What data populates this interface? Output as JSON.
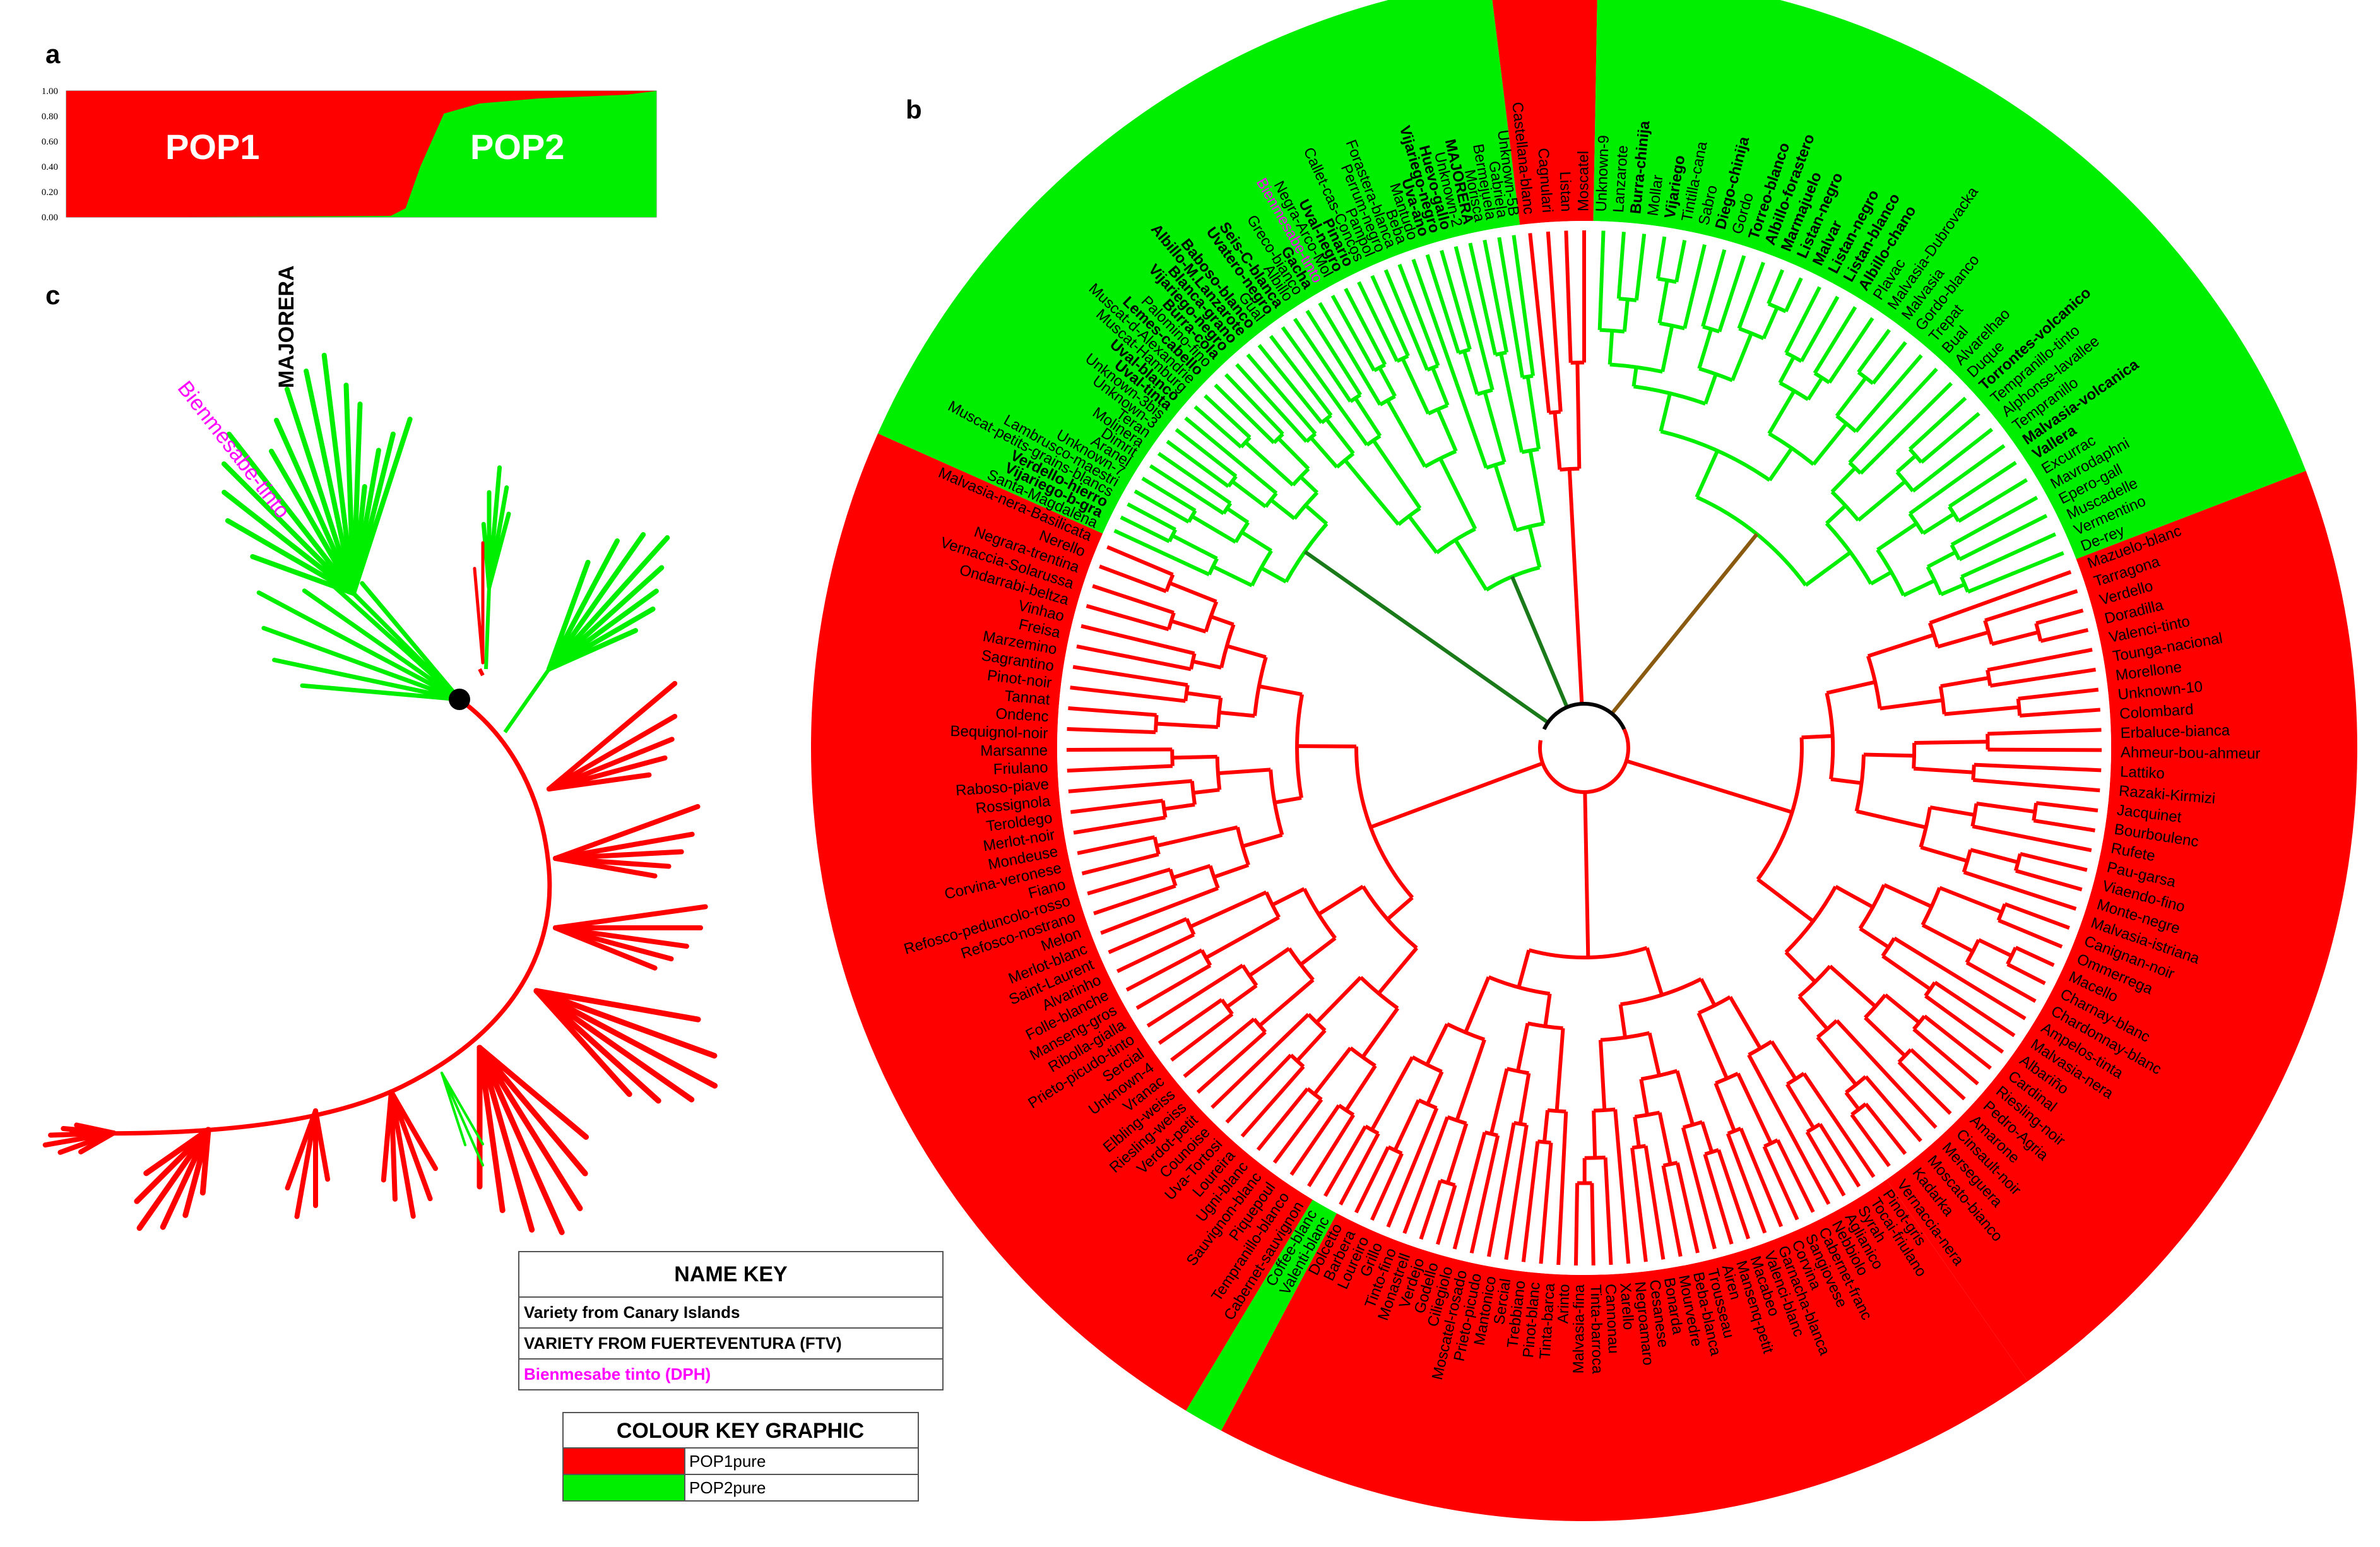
{
  "panels": {
    "a": "a",
    "b": "b",
    "c": "c"
  },
  "colors": {
    "pop1": "#ff0000",
    "pop2": "#00ee00",
    "magenta": "#ff00ff",
    "black": "#000000"
  },
  "panel_a": {
    "pop1_label": "POP1",
    "pop2_label": "POP2",
    "y_ticks": [
      "1.00",
      "0.80",
      "0.60",
      "0.40",
      "0.20",
      "0.00"
    ]
  },
  "chart_data": {
    "type": "area",
    "title": "",
    "xlabel": "",
    "ylabel": "",
    "ylim": [
      0,
      1
    ],
    "x": [
      0,
      0.2,
      0.4,
      0.55,
      0.575,
      0.6,
      0.64,
      0.7,
      0.8,
      0.9,
      0.95,
      1.0
    ],
    "series": [
      {
        "name": "POP1",
        "values": [
          1.0,
          1.0,
          0.995,
          0.99,
          0.93,
          0.6,
          0.18,
          0.1,
          0.06,
          0.04,
          0.03,
          0.0
        ]
      },
      {
        "name": "POP2",
        "values": [
          0.0,
          0.0,
          0.005,
          0.01,
          0.07,
          0.4,
          0.82,
          0.9,
          0.94,
          0.96,
          0.97,
          1.0
        ]
      }
    ]
  },
  "panel_c": {
    "majorera": "MAJORERA",
    "bienmesabe": "Bienmesabe-tinto"
  },
  "name_key": {
    "title": "NAME KEY",
    "rows": [
      {
        "text": "Variety from Canary Islands",
        "color": "#000000"
      },
      {
        "text": "VARIETY FROM FUERTEVENTURA (FTV)",
        "color": "#000000"
      },
      {
        "text": "Bienmesabe tinto (DPH)",
        "color": "#ff00ff"
      }
    ]
  },
  "colour_key": {
    "title": "COLOUR KEY GRAPHIC",
    "rows": [
      {
        "label": "POP1pure",
        "color": "#ff0000"
      },
      {
        "label": "POP2pure",
        "color": "#00ee00"
      }
    ]
  },
  "tree_b": {
    "green_leaves": [
      {
        "t": "Santa-Magdalena"
      },
      {
        "t": "Vijariego-b-gra",
        "b": 1
      },
      {
        "t": "Verdello-hierro",
        "b": 1
      },
      {
        "t": "Muscat-petits-grains-blancs"
      },
      {
        "t": "Lambrusco-maestri"
      },
      {
        "t": "Unknown-7"
      },
      {
        "t": "Aranel"
      },
      {
        "t": "Dimrit"
      },
      {
        "t": "Molinera"
      },
      {
        "t": "Teran"
      },
      {
        "t": "Unknown-3"
      },
      {
        "t": "Unknown-3bis"
      },
      {
        "t": "Uval-tinta",
        "b": 1
      },
      {
        "t": "Uval-blanco",
        "b": 1
      },
      {
        "t": "Muscat-Hamburg"
      },
      {
        "t": "Muscat-d-Alexandrie"
      },
      {
        "t": "Lemes-cabello",
        "b": 1
      },
      {
        "t": "Palomino-fino"
      },
      {
        "t": "Burra-cola",
        "b": 1
      },
      {
        "t": "Vijariego-negro",
        "b": 1
      },
      {
        "t": "Blanca-grano",
        "b": 1
      },
      {
        "t": "Albillo-M.Lanzarote",
        "b": 1
      },
      {
        "t": "Baboso-blanco",
        "b": 1
      },
      {
        "t": "Gual"
      },
      {
        "t": "Uvatero-negro",
        "b": 1
      },
      {
        "t": "Seis-C-blanca",
        "b": 1
      },
      {
        "t": "Albillo"
      },
      {
        "t": "Greco-bianco"
      },
      {
        "t": "Gacha",
        "b": 1
      },
      {
        "t": "Bienmesabe-tinto",
        "m": 1
      },
      {
        "t": "Negra-Arco-Mol"
      },
      {
        "t": "Uval-negro",
        "b": 1
      },
      {
        "t": "Pinario",
        "b": 1
      },
      {
        "t": "Callet-cas-Concos"
      },
      {
        "t": "Pampol"
      },
      {
        "t": "Perrum-negro"
      },
      {
        "t": "Forastera-blanca"
      },
      {
        "t": "Beba"
      },
      {
        "t": "Mantudo"
      },
      {
        "t": "Uva-ano",
        "b": 1
      },
      {
        "t": "Vijariego-negro",
        "b": 1
      },
      {
        "t": "Huevo-gallo",
        "b": 1
      },
      {
        "t": "Unknown-2"
      },
      {
        "t": "MAJORERA",
        "b": 1
      },
      {
        "t": "Morisca"
      },
      {
        "t": "Bermejuela"
      },
      {
        "t": "Gabriela"
      },
      {
        "t": "Unknown-5B"
      }
    ],
    "red_top_leaves": [
      {
        "t": "Castellana-blanc"
      },
      {
        "t": "Cagnulari"
      },
      {
        "t": "Listan"
      },
      {
        "t": "Moscatel"
      }
    ],
    "green_right_leaves": [
      {
        "t": "Unknown-9"
      },
      {
        "t": "Lanzarote"
      },
      {
        "t": "Burra-chinija",
        "b": 1
      },
      {
        "t": "Mollar"
      },
      {
        "t": "Vijariego",
        "b": 1
      },
      {
        "t": "Tintilla-cana"
      },
      {
        "t": "Sabro"
      },
      {
        "t": "Diego-chinija",
        "b": 1
      },
      {
        "t": "Gordo"
      },
      {
        "t": "Torreo-blanco",
        "b": 1
      },
      {
        "t": "Albillo-forastero",
        "b": 1
      },
      {
        "t": "Marmajuelo",
        "b": 1
      },
      {
        "t": "Listan-negro",
        "b": 1
      },
      {
        "t": "Malvar",
        "b": 1
      },
      {
        "t": "Listan-negro",
        "b": 1
      },
      {
        "t": "Listan-blanco",
        "b": 1
      },
      {
        "t": "Albillo-chano",
        "b": 1
      },
      {
        "t": "Plavac"
      },
      {
        "t": "Malvasia-Dubrovacka"
      },
      {
        "t": "Malvasia"
      },
      {
        "t": "Gordo-blanco"
      },
      {
        "t": "Trepat"
      },
      {
        "t": "Bual"
      },
      {
        "t": "Alvarelhao"
      },
      {
        "t": "Duque"
      },
      {
        "t": "Torrontes-volcanico",
        "b": 1
      },
      {
        "t": "Tempranillo-tinto"
      },
      {
        "t": "Alphonse-lavallee"
      },
      {
        "t": "Tempranillo"
      },
      {
        "t": "Malvasia-volcanica",
        "b": 1
      },
      {
        "t": "Vallera",
        "b": 1
      },
      {
        "t": "Excurrac"
      },
      {
        "t": "Mavrodaphni"
      },
      {
        "t": "Epero-gall"
      },
      {
        "t": "Muscadelle"
      },
      {
        "t": "Vermentino"
      },
      {
        "t": "De-rey"
      }
    ],
    "red_right_leaves": [
      {
        "t": "Mazuelo-blanc"
      },
      {
        "t": "Tarragona"
      },
      {
        "t": "Verdello"
      },
      {
        "t": "Doradilla"
      },
      {
        "t": "Valenci-tinto"
      },
      {
        "t": "Tounga-nacional"
      },
      {
        "t": "Morellone"
      },
      {
        "t": "Unknown-10"
      },
      {
        "t": "Colombard"
      },
      {
        "t": "Erbaluce-bianca"
      },
      {
        "t": "Ahmeur-bou-ahmeur"
      },
      {
        "t": "Lattiko"
      },
      {
        "t": "Razaki-Kirmizi"
      },
      {
        "t": "Jacquinet"
      },
      {
        "t": "Bourboulenc"
      },
      {
        "t": "Rufete"
      },
      {
        "t": "Pau-garsa"
      },
      {
        "t": "Viaendo-fino"
      },
      {
        "t": "Monte-negre"
      },
      {
        "t": "Malvasia-istriana"
      },
      {
        "t": "Canignan-noir"
      },
      {
        "t": "Ommerrega"
      },
      {
        "t": "Macello"
      },
      {
        "t": "Charnay-blanc"
      },
      {
        "t": "Chardonnay-blanc"
      },
      {
        "t": "Ampelos-tinta"
      },
      {
        "t": "Malvasia-nera"
      },
      {
        "t": "Albariño"
      },
      {
        "t": "Cardinal"
      },
      {
        "t": "Riesling-noir"
      },
      {
        "t": "Pedro-Agria"
      },
      {
        "t": "Amarone"
      },
      {
        "t": "Cinsault-noir"
      },
      {
        "t": "Merseguera"
      },
      {
        "t": "Moscato-bianco"
      },
      {
        "t": "Kadarka"
      },
      {
        "t": "Vernaccia-nera"
      }
    ],
    "red_bottom_leaves": [
      {
        "t": "Pinot-gris"
      },
      {
        "t": "Tocai-friulano"
      },
      {
        "t": "Syrah"
      },
      {
        "t": "Aglianico"
      },
      {
        "t": "Nebbiolo"
      },
      {
        "t": "Cabernet-franc"
      },
      {
        "t": "Sangiovese"
      },
      {
        "t": "Corvina"
      },
      {
        "t": "Garnacha-blanca"
      },
      {
        "t": "Valenci-blanc"
      },
      {
        "t": "Macabeo"
      },
      {
        "t": "Mansenq-petit"
      },
      {
        "t": "Airen"
      },
      {
        "t": "Trousseau"
      },
      {
        "t": "Beba-blanca"
      },
      {
        "t": "Mourvedre"
      },
      {
        "t": "Bonarda"
      },
      {
        "t": "Cesanese"
      },
      {
        "t": "Negroamaro"
      },
      {
        "t": "Xarello"
      },
      {
        "t": "Cannonau"
      },
      {
        "t": "Tinta-barroca"
      },
      {
        "t": "Malvasia-fina"
      },
      {
        "t": "Arinto"
      },
      {
        "t": "Tinta-barca"
      },
      {
        "t": "Pinot-blanc"
      },
      {
        "t": "Trebbiano"
      },
      {
        "t": "Sercial"
      },
      {
        "t": "Mantonico"
      },
      {
        "t": "Prieto-picudo"
      },
      {
        "t": "Moscatel-rosado"
      },
      {
        "t": "Ciliegiolo"
      },
      {
        "t": "Godello"
      },
      {
        "t": "Verdejo"
      },
      {
        "t": "Monastrell"
      },
      {
        "t": "Tinto-fino"
      },
      {
        "t": "Grillo"
      },
      {
        "t": "Loureiro"
      },
      {
        "t": "Barbera"
      },
      {
        "t": "Dolcetto"
      }
    ],
    "red_left_leaves": [
      {
        "t": "Cabernet-sauvignon"
      },
      {
        "t": "Tempranillo-blanco"
      },
      {
        "t": "Piquepoul"
      },
      {
        "t": "Sauvignon-blanc"
      },
      {
        "t": "Ugni-blanc"
      },
      {
        "t": "Loureira"
      },
      {
        "t": "Uva-Tortosi"
      },
      {
        "t": "Counoise"
      },
      {
        "t": "Verdot-petit"
      },
      {
        "t": "Riesling-weiss"
      },
      {
        "t": "Elbling-weiss"
      },
      {
        "t": "Vranac"
      },
      {
        "t": "Unknown-4"
      },
      {
        "t": "Sercial"
      },
      {
        "t": "Prieto-picudo-tinto"
      },
      {
        "t": "Ribolla-gialla"
      },
      {
        "t": "Manseng-gros"
      },
      {
        "t": "Folle-blanche"
      },
      {
        "t": "Alvarinho"
      },
      {
        "t": "Saint-Laurent"
      },
      {
        "t": "Merlot-blanc"
      },
      {
        "t": "Melon"
      },
      {
        "t": "Refosco-nostrano"
      },
      {
        "t": "Refosco-peduncolo-rosso"
      },
      {
        "t": "Fiano"
      },
      {
        "t": "Corvina-veronese"
      },
      {
        "t": "Mondeuse"
      },
      {
        "t": "Merlot-noir"
      },
      {
        "t": "Teroldego"
      },
      {
        "t": "Rossignola"
      },
      {
        "t": "Raboso-piave"
      },
      {
        "t": "Friulano"
      },
      {
        "t": "Marsanne"
      },
      {
        "t": "Bequignol-noir"
      },
      {
        "t": "Ondenc"
      },
      {
        "t": "Tannat"
      },
      {
        "t": "Pinot-noir"
      },
      {
        "t": "Sagrantino"
      },
      {
        "t": "Marzemino"
      },
      {
        "t": "Freisa"
      },
      {
        "t": "Vinhao"
      },
      {
        "t": "Ondarrabi-beltza"
      },
      {
        "t": "Vernaccia-Solarussa"
      },
      {
        "t": "Negrara-trentina"
      },
      {
        "t": "Nerello"
      },
      {
        "t": "Malvasia-nera-Basilicata"
      }
    ],
    "highlight_leaves": [
      {
        "t": "Valenti-blanc"
      },
      {
        "t": "Coffee-blanc"
      }
    ]
  }
}
